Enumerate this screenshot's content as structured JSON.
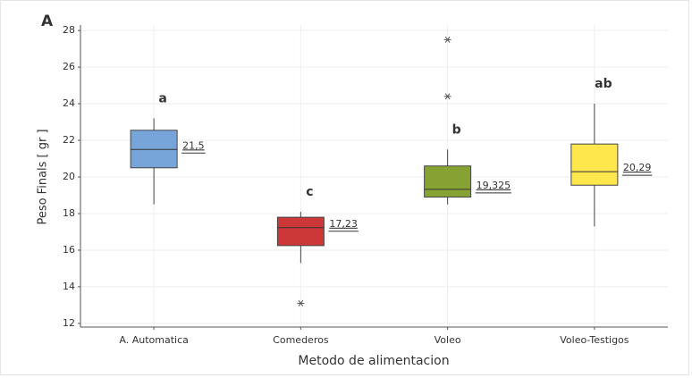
{
  "chart_data": {
    "type": "box",
    "panel_label": "A",
    "xlabel": "Metodo de alimentacion",
    "ylabel": "Peso Finals [ gr ]",
    "categories": [
      "A. Automatica",
      "Comederos",
      "Voleo",
      "Voleo-Testigos"
    ],
    "whisker_low": [
      18.5,
      15.3,
      18.5,
      17.3
    ],
    "q1": [
      20.5,
      16.25,
      18.9,
      19.55
    ],
    "median": [
      21.5,
      17.23,
      19.325,
      20.29
    ],
    "value_labels": [
      "21,5",
      "17,23",
      "19,325",
      "20,29"
    ],
    "q3": [
      22.55,
      17.8,
      20.6,
      21.8
    ],
    "whisker_high": [
      23.2,
      18.1,
      21.5,
      24.0
    ],
    "outliers": [
      [],
      [
        13.1
      ],
      [
        24.4,
        27.5
      ],
      []
    ],
    "letters": [
      "a",
      "c",
      "b",
      "ab"
    ],
    "colors": [
      "#78a5d9",
      "#cc3838",
      "#86a232",
      "#fde74c"
    ],
    "ylim": [
      11.8,
      28.3
    ],
    "yticks": [
      12,
      14,
      16,
      18,
      20,
      22,
      24,
      26,
      28
    ],
    "grid": true
  }
}
